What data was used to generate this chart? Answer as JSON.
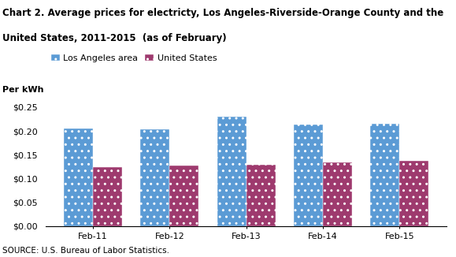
{
  "title_line1": "Chart 2. Average prices for electricty, Los Angeles-Riverside-Orange County and the",
  "title_line2": "United States, 2011-2015  (as of February)",
  "ylabel": "Per kWh",
  "source": "SOURCE: U.S. Bureau of Labor Statistics.",
  "categories": [
    "Feb-11",
    "Feb-12",
    "Feb-13",
    "Feb-14",
    "Feb-15"
  ],
  "series": [
    {
      "label": "Los Angeles area",
      "values": [
        0.205,
        0.203,
        0.23,
        0.213,
        0.215
      ],
      "color": "#5B9BD5",
      "hatch": ".."
    },
    {
      "label": "United States",
      "values": [
        0.124,
        0.128,
        0.129,
        0.134,
        0.137
      ],
      "color": "#9E3A6E",
      "hatch": ".."
    }
  ],
  "ylim": [
    0,
    0.27
  ],
  "yticks": [
    0.0,
    0.05,
    0.1,
    0.15,
    0.2,
    0.25
  ],
  "bar_width": 0.38,
  "figsize": [
    5.79,
    3.26
  ],
  "dpi": 100,
  "title_fontsize": 8.5,
  "axis_fontsize": 8,
  "legend_fontsize": 8,
  "source_fontsize": 7.5
}
